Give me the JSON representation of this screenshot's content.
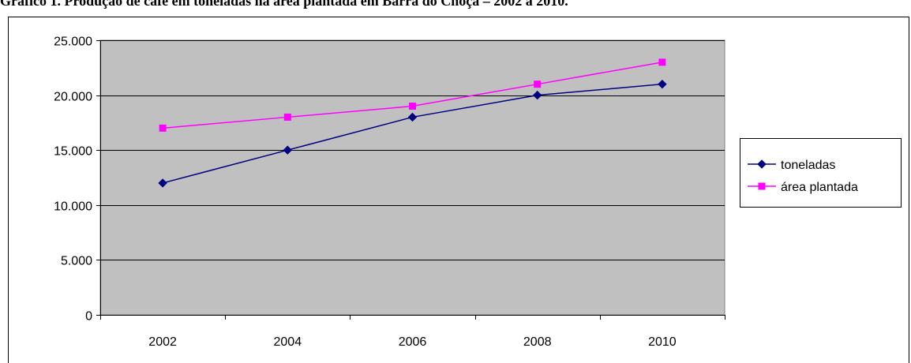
{
  "chart_data": {
    "type": "line",
    "title": "Gráfico 1. Produção de café em toneladas na área plantada em Barra do Choça – 2002 a 2010.",
    "xlabel": "",
    "ylabel": "",
    "categories": [
      "2002",
      "2004",
      "2006",
      "2008",
      "2010"
    ],
    "ylim": [
      0,
      25000
    ],
    "yticks": [
      0,
      5000,
      10000,
      15000,
      20000,
      25000
    ],
    "ytick_labels": [
      "0",
      "5.000",
      "10.000",
      "15.000",
      "20.000",
      "25.000"
    ],
    "grid": true,
    "plot_background": "#C0C0C0",
    "legend_position": "right",
    "series": [
      {
        "name": "toneladas",
        "values": [
          12000,
          15000,
          18000,
          20000,
          21000
        ],
        "color": "#000080",
        "marker": "diamond"
      },
      {
        "name": "área plantada",
        "values": [
          17000,
          18000,
          19000,
          21000,
          23000
        ],
        "color": "#FF00FF",
        "marker": "square"
      }
    ]
  }
}
